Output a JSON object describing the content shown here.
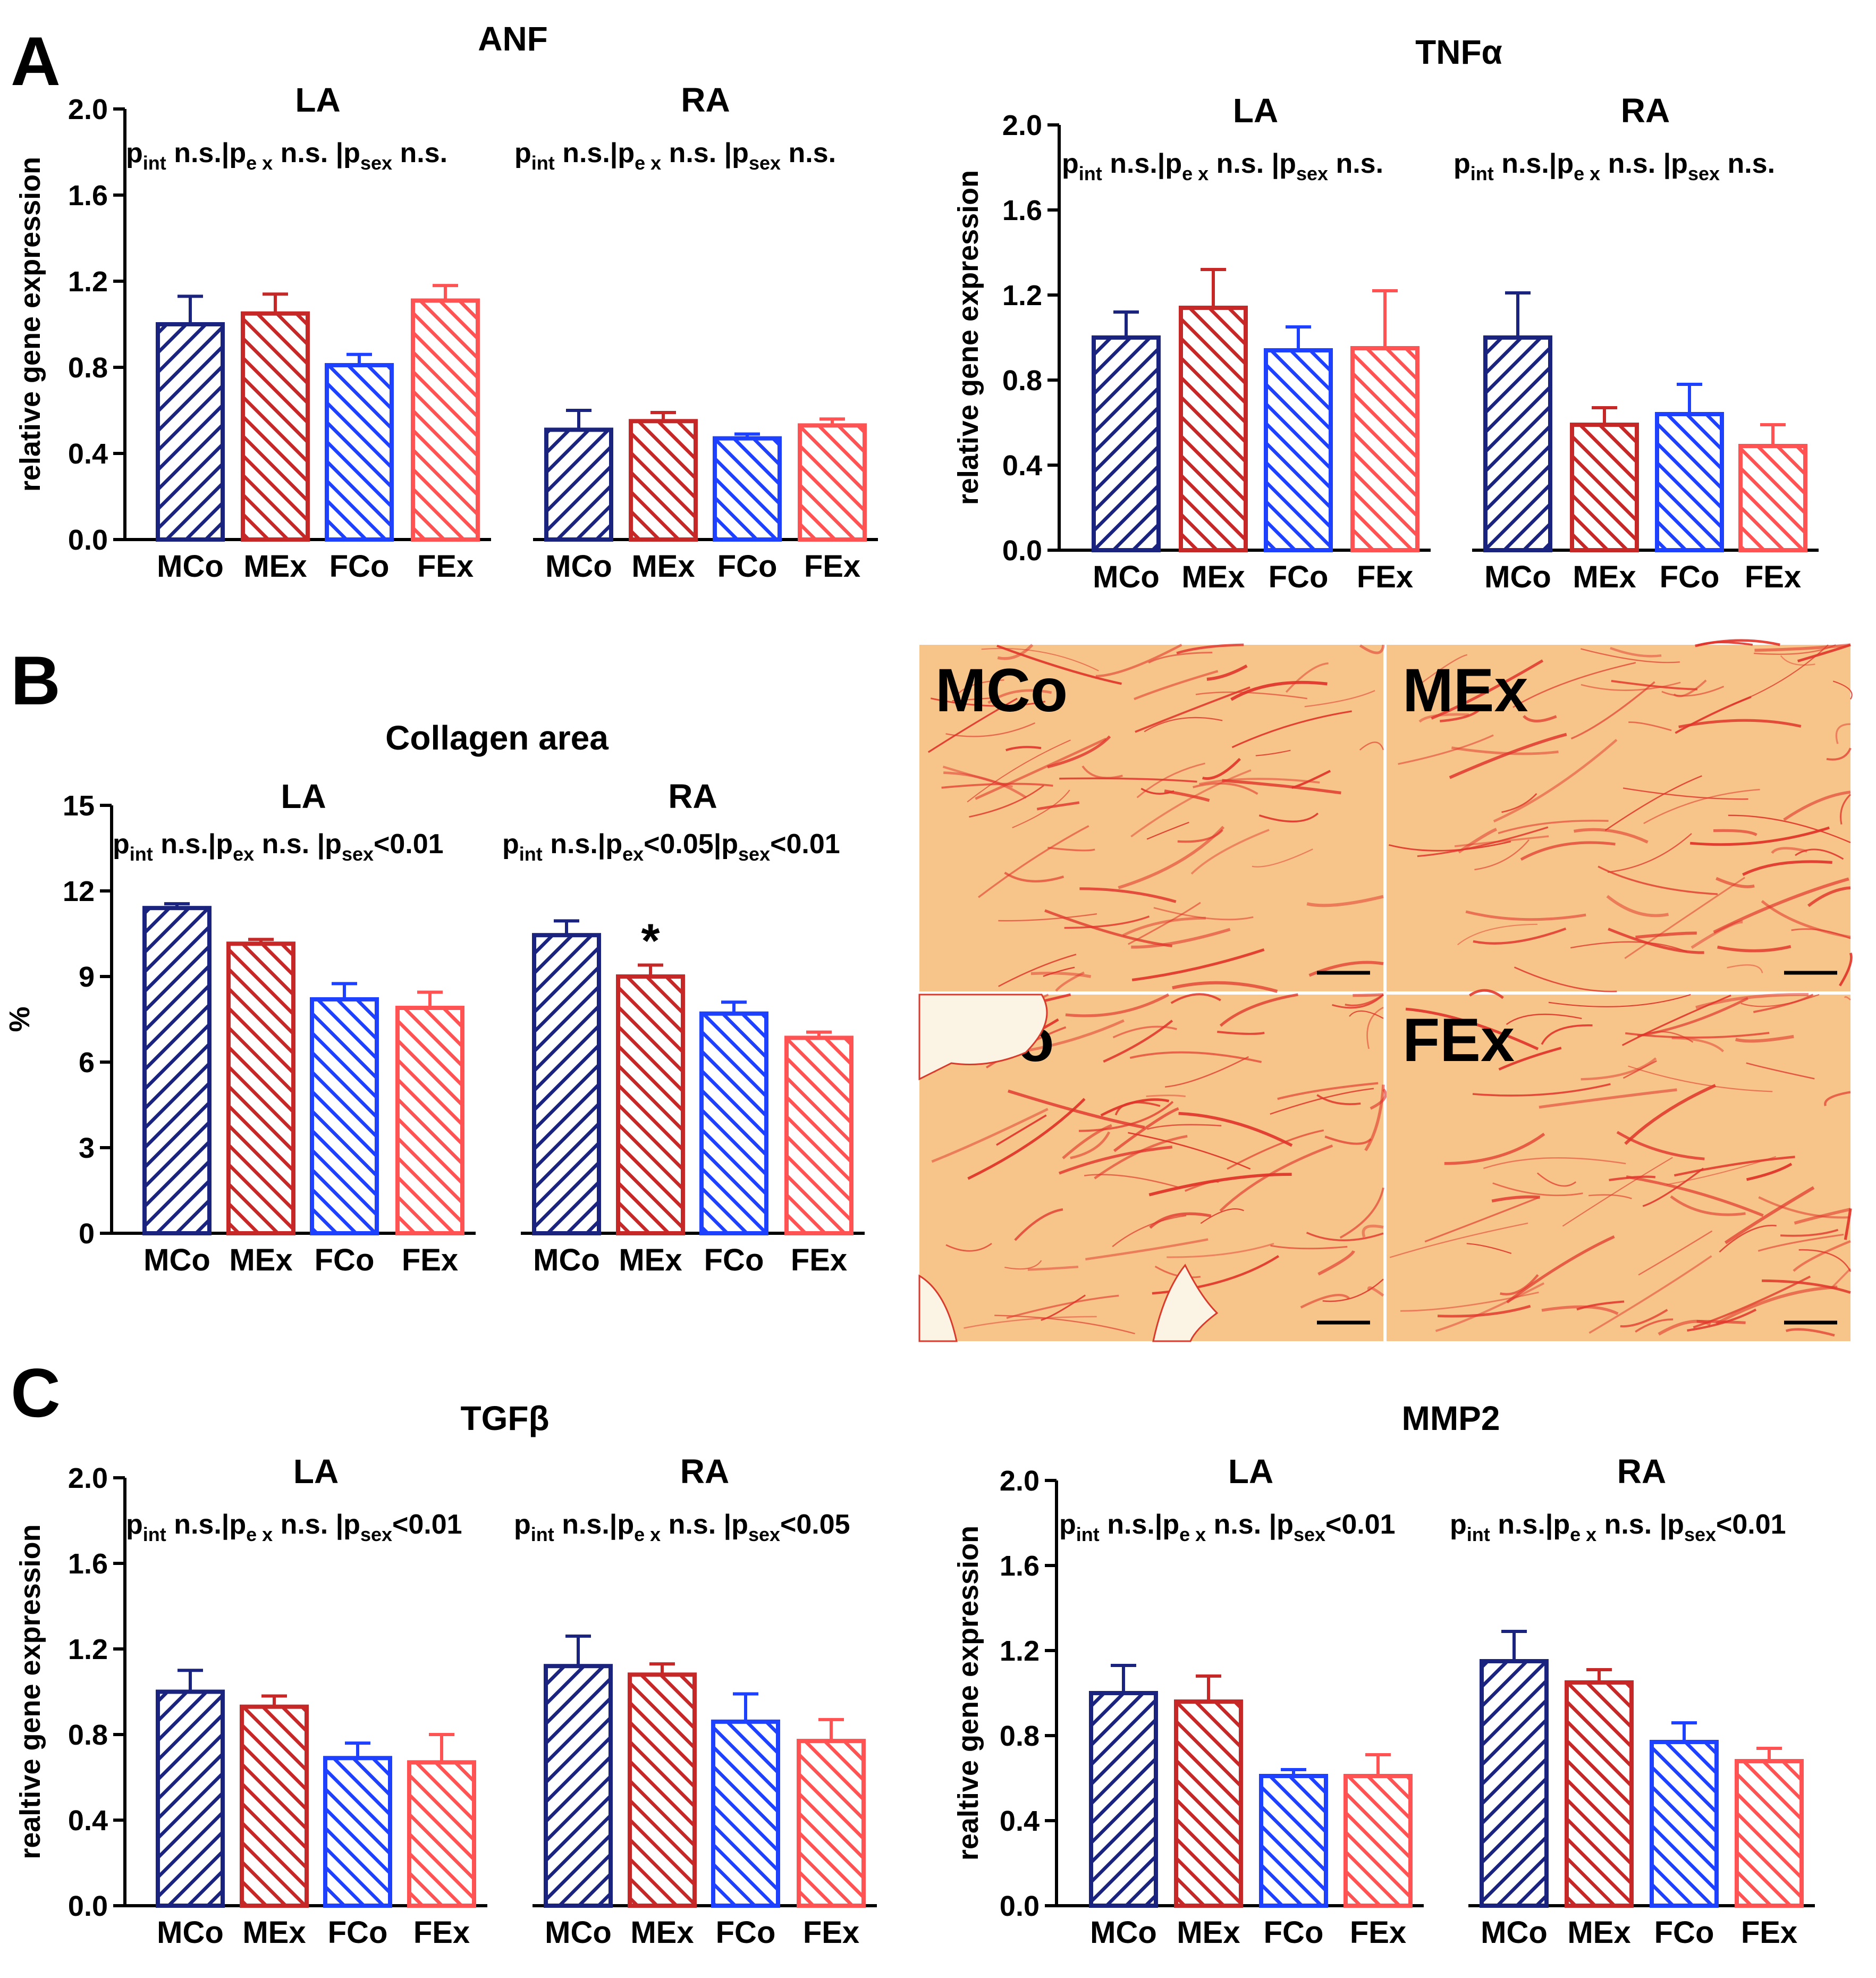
{
  "panel_letters": [
    "A",
    "B",
    "C"
  ],
  "colors": {
    "MCo": "#1a237e",
    "MEx": "#c62828",
    "FCo": "#1e40ff",
    "FEx": "#ff5252",
    "tissue": "#f7c48a",
    "collagen": "#e0352b"
  },
  "stat_labels": {
    "int": "int",
    "ex": "e x",
    "ex_collagen": "ex",
    "sex": "sex",
    "p": "p"
  },
  "chart_data": [
    {
      "id": "anf",
      "type": "bar",
      "title": "ANF",
      "ylabel": "relative gene expression",
      "ylim": [
        0,
        2.0
      ],
      "yticks": [
        "0.0",
        "0.4",
        "0.8",
        "1.2",
        "1.6",
        "2.0"
      ],
      "groups": [
        {
          "label": "LA",
          "stats": {
            "int": "n.s.",
            "ex": "n.s.",
            "sex": "n.s."
          },
          "categories": [
            "MCo",
            "MEx",
            "FCo",
            "FEx"
          ],
          "values": [
            1.0,
            1.05,
            0.81,
            1.11
          ],
          "errors": [
            0.13,
            0.09,
            0.05,
            0.07
          ]
        },
        {
          "label": "RA",
          "stats": {
            "int": "n.s.",
            "ex": "n.s.",
            "sex": "n.s."
          },
          "categories": [
            "MCo",
            "MEx",
            "FCo",
            "FEx"
          ],
          "values": [
            0.51,
            0.55,
            0.47,
            0.53
          ],
          "errors": [
            0.09,
            0.04,
            0.02,
            0.03
          ]
        }
      ]
    },
    {
      "id": "tnfa",
      "type": "bar",
      "title": "TNFα",
      "ylabel": "relative gene expression",
      "ylim": [
        0,
        2.0
      ],
      "yticks": [
        "0.0",
        "0.4",
        "0.8",
        "1.2",
        "1.6",
        "2.0"
      ],
      "groups": [
        {
          "label": "LA",
          "stats": {
            "int": "n.s.",
            "ex": "n.s.",
            "sex": "n.s."
          },
          "categories": [
            "MCo",
            "MEx",
            "FCo",
            "FEx"
          ],
          "values": [
            1.0,
            1.14,
            0.94,
            0.95
          ],
          "errors": [
            0.12,
            0.18,
            0.11,
            0.27
          ]
        },
        {
          "label": "RA",
          "stats": {
            "int": "n.s.",
            "ex": "n.s.",
            "sex": "n.s."
          },
          "categories": [
            "MCo",
            "MEx",
            "FCo",
            "FEx"
          ],
          "values": [
            1.0,
            0.59,
            0.64,
            0.49
          ],
          "errors": [
            0.21,
            0.08,
            0.14,
            0.1
          ]
        }
      ]
    },
    {
      "id": "collagen",
      "type": "bar",
      "title": "Collagen area",
      "ylabel": "%",
      "ylim": [
        0,
        15
      ],
      "yticks": [
        "0",
        "3",
        "6",
        "9",
        "12",
        "15"
      ],
      "groups": [
        {
          "label": "LA",
          "stats": {
            "int": "n.s.",
            "ex": "n.s.",
            "sex": "<0.01"
          },
          "categories": [
            "MCo",
            "MEx",
            "FCo",
            "FEx"
          ],
          "values": [
            11.4,
            10.15,
            8.2,
            7.9
          ],
          "errors": [
            0.15,
            0.15,
            0.55,
            0.55
          ]
        },
        {
          "label": "RA",
          "stats": {
            "int": "n.s.",
            "ex": "<0.05",
            "sex": "<0.01"
          },
          "categories": [
            "MCo",
            "MEx",
            "FCo",
            "FEx"
          ],
          "values": [
            10.45,
            9.0,
            7.7,
            6.85
          ],
          "errors": [
            0.5,
            0.4,
            0.4,
            0.2
          ],
          "annotations": [
            {
              "bar": 1,
              "text": "*"
            }
          ]
        }
      ]
    },
    {
      "id": "tgfb",
      "type": "bar",
      "title": "TGFβ",
      "ylabel": "realtive gene expression",
      "ylim": [
        0,
        2.0
      ],
      "yticks": [
        "0.0",
        "0.4",
        "0.8",
        "1.2",
        "1.6",
        "2.0"
      ],
      "groups": [
        {
          "label": "LA",
          "stats": {
            "int": "n.s.",
            "ex": "n.s.",
            "sex": "<0.01"
          },
          "categories": [
            "MCo",
            "MEx",
            "FCo",
            "FEx"
          ],
          "values": [
            1.0,
            0.93,
            0.69,
            0.67
          ],
          "errors": [
            0.1,
            0.05,
            0.07,
            0.13
          ]
        },
        {
          "label": "RA",
          "stats": {
            "int": "n.s.",
            "ex": "n.s.",
            "sex": "<0.05"
          },
          "categories": [
            "MCo",
            "MEx",
            "FCo",
            "FEx"
          ],
          "values": [
            1.12,
            1.08,
            0.86,
            0.77
          ],
          "errors": [
            0.14,
            0.05,
            0.13,
            0.1
          ]
        }
      ]
    },
    {
      "id": "mmp2",
      "type": "bar",
      "title": "MMP2",
      "ylabel": "realtive gene expression",
      "ylim": [
        0,
        2.0
      ],
      "yticks": [
        "0.0",
        "0.4",
        "0.8",
        "1.2",
        "1.6",
        "2.0"
      ],
      "groups": [
        {
          "label": "LA",
          "stats": {
            "int": "n.s.",
            "ex": "n.s.",
            "sex": "<0.01"
          },
          "categories": [
            "MCo",
            "MEx",
            "FCo",
            "FEx"
          ],
          "values": [
            1.0,
            0.96,
            0.61,
            0.61
          ],
          "errors": [
            0.13,
            0.12,
            0.03,
            0.1
          ]
        },
        {
          "label": "RA",
          "stats": {
            "int": "n.s.",
            "ex": "n.s.",
            "sex": "<0.01"
          },
          "categories": [
            "MCo",
            "MEx",
            "FCo",
            "FEx"
          ],
          "values": [
            1.15,
            1.05,
            0.77,
            0.68
          ],
          "errors": [
            0.14,
            0.06,
            0.09,
            0.06
          ]
        }
      ]
    }
  ],
  "micrographs": [
    {
      "label": "MCo"
    },
    {
      "label": "MEx"
    },
    {
      "label": "FCo"
    },
    {
      "label": "FEx"
    }
  ]
}
